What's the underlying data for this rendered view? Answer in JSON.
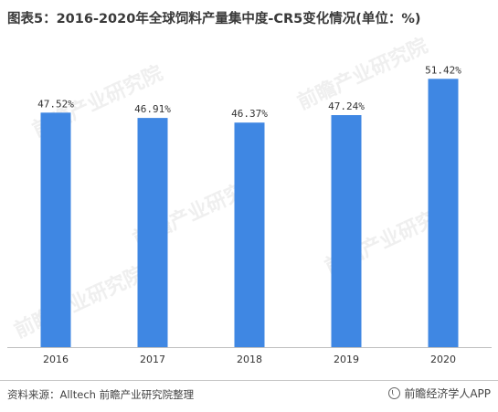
{
  "title": "图表5：2016-2020年全球饲料产量集中度-CR5变化情况(单位：%)",
  "footer": {
    "source": "资料来源：Alltech 前瞻产业研究院整理",
    "brand": "前瞻经济学人APP"
  },
  "watermark_text": "前瞻产业研究院",
  "colors": {
    "bar": "#3f87e3"
  },
  "chart_data": {
    "type": "bar",
    "title": "图表5：2016-2020年全球饲料产量集中度-CR5变化情况(单位：%)",
    "categories": [
      "2016",
      "2017",
      "2018",
      "2019",
      "2020"
    ],
    "values": [
      47.52,
      46.91,
      46.37,
      47.24,
      51.42
    ],
    "value_labels": [
      "47.52%",
      "46.91%",
      "46.37%",
      "47.24%",
      "51.42%"
    ],
    "xlabel": "",
    "ylabel": "",
    "unit": "%",
    "grid": false,
    "legend": false
  }
}
